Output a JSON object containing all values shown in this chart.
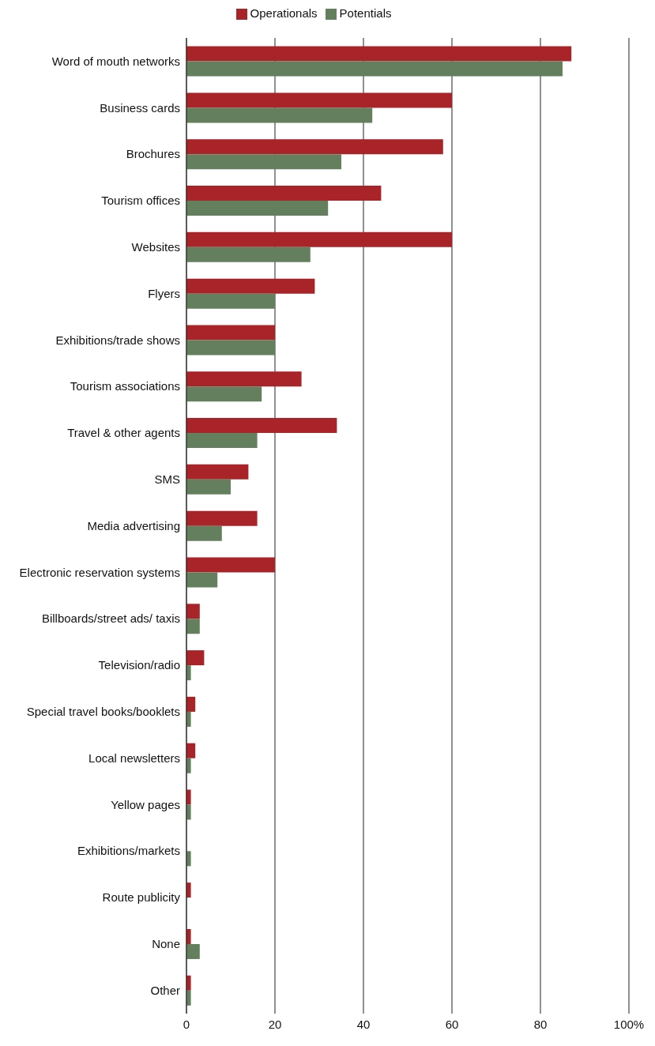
{
  "chart_data": {
    "type": "bar",
    "orientation": "horizontal",
    "categories": [
      "Word of mouth networks",
      "Business cards",
      "Brochures",
      "Tourism offices",
      "Websites",
      "Flyers",
      "Exhibitions/trade shows",
      "Tourism associations",
      "Travel & other agents",
      "SMS",
      "Media advertising",
      "Electronic reservation systems",
      "Billboards/street ads/ taxis",
      "Television/radio",
      "Special travel books/booklets",
      "Local newsletters",
      "Yellow pages",
      "Exhibitions/markets",
      "Route publicity",
      "None",
      "Other"
    ],
    "series": [
      {
        "name": "Operationals",
        "color": "#a82428",
        "values": [
          87,
          60,
          58,
          44,
          60,
          29,
          20,
          26,
          34,
          14,
          16,
          20,
          3,
          4,
          2,
          2,
          1,
          0,
          1,
          1,
          1
        ]
      },
      {
        "name": "Potentials",
        "color": "#647f5e",
        "values": [
          85,
          42,
          35,
          32,
          28,
          20,
          20,
          17,
          16,
          10,
          8,
          7,
          3,
          1,
          1,
          1,
          1,
          1,
          0,
          3,
          1
        ]
      }
    ],
    "xlim": [
      0,
      100
    ],
    "xticks": [
      0,
      20,
      40,
      60,
      80,
      {
        "value": 100,
        "label": "100%"
      }
    ],
    "grid": "x",
    "legend": "top"
  }
}
